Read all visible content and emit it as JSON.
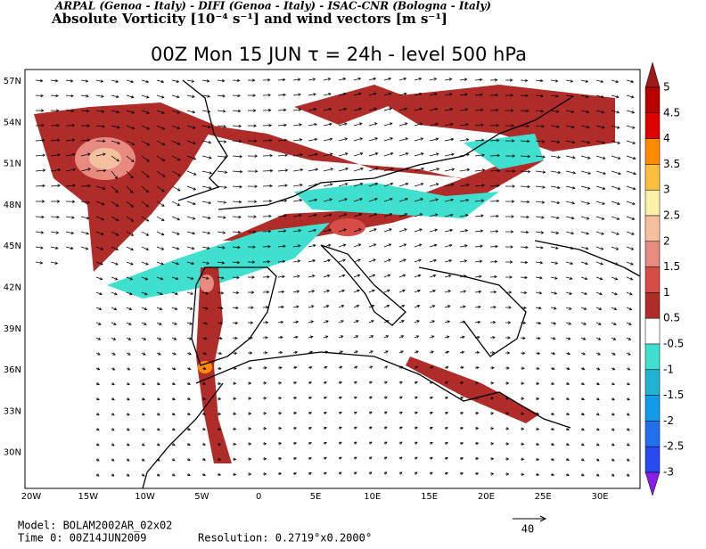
{
  "header": {
    "institutions": "ARPAL (Genoa - Italy)  -  DIFI (Genoa - Italy)  -  ISAC-CNR (Bologna - Italy)",
    "field": "Absolute Vorticity [10⁻⁴ s⁻¹] and wind vectors [m s⁻¹]",
    "title": "00Z Mon 15 JUN  τ = 24h  -  level 500 hPa"
  },
  "map": {
    "lat_labels": [
      "57N",
      "54N",
      "51N",
      "48N",
      "45N",
      "42N",
      "39N",
      "36N",
      "33N",
      "30N"
    ],
    "lon_labels": [
      "20W",
      "15W",
      "10W",
      "5W",
      "0",
      "5E",
      "10E",
      "15E",
      "20E",
      "25E",
      "30E"
    ]
  },
  "colorbar": {
    "labels": [
      "5",
      "4.5",
      "4",
      "3.5",
      "3",
      "2.5",
      "2",
      "1.5",
      "1",
      "0.5",
      "-0.5",
      "-1",
      "-1.5",
      "-2",
      "-2.5",
      "-3"
    ],
    "colors": [
      "#9c1c1c",
      "#b80000",
      "#e00000",
      "#ff8c00",
      "#ffbe40",
      "#fff0a8",
      "#f5c0a0",
      "#e88a80",
      "#d84c48",
      "#b02c28",
      "#ffffff",
      "#40e0d0",
      "#20b4d4",
      "#109ce8",
      "#2070f0",
      "#2848f0",
      "#8a20e8"
    ]
  },
  "footer": {
    "model": "Model: BOLAM2002AR_02x02",
    "time": "Time 0: 00Z14JUN2009",
    "resolution": "Resolution: 0.2719°x0.2000°",
    "scale_label": "40"
  }
}
